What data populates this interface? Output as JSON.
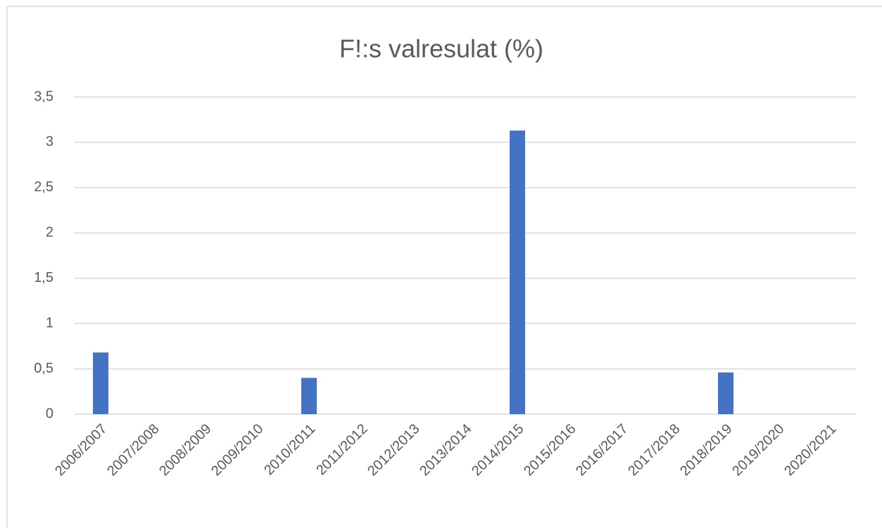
{
  "chart_data": {
    "type": "bar",
    "title": "F!:s valresulat (%)",
    "categories": [
      "2006/2007",
      "2007/2008",
      "2008/2009",
      "2009/2010",
      "2010/2011",
      "2011/2012",
      "2012/2013",
      "2013/2014",
      "2014/2015",
      "2015/2016",
      "2016/2017",
      "2017/2018",
      "2018/2019",
      "2019/2020",
      "2020/2021"
    ],
    "values": [
      0.68,
      0,
      0,
      0,
      0.4,
      0,
      0,
      0,
      3.13,
      0,
      0,
      0,
      0.46,
      0,
      0
    ],
    "color": "#4472c4",
    "ylim": [
      0,
      3.5
    ],
    "yticks": [
      0,
      {
        "value": 0.5,
        "label": "0,5"
      },
      1,
      {
        "value": 1.5,
        "label": "1,5"
      },
      2,
      {
        "value": 2.5,
        "label": "2,5"
      },
      3,
      {
        "value": 3.5,
        "label": "3,5"
      }
    ],
    "grid": true
  }
}
